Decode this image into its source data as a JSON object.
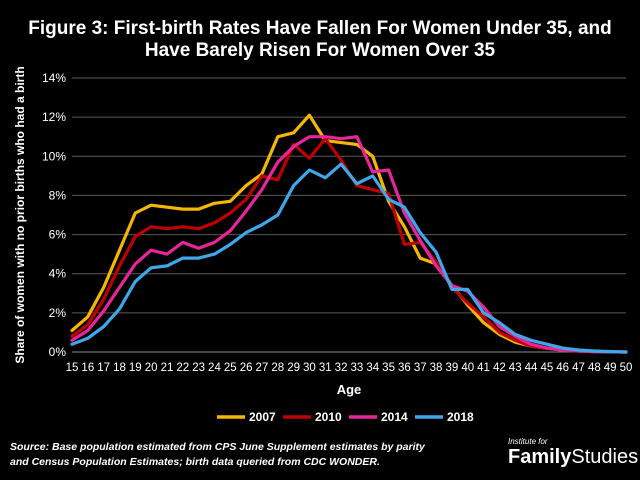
{
  "title_line1": "Figure 3: First-birth Rates Have Fallen For Women Under 35, and",
  "title_line2": "Have Barely Risen For Women Over 35",
  "source_line1": "Source: Base population estimated from CPS June Supplement estimates by parity",
  "source_line2": "and Census Population Estimates;  birth data queried from CDC WONDER.",
  "logo": {
    "small": "Institute for",
    "bold": "Family",
    "light": "Studies"
  },
  "chart_data": {
    "type": "line",
    "xlabel": "Age",
    "ylabel": "Share of women with no prior births who had a birth",
    "ylim": [
      0,
      14
    ],
    "yticks": [
      "0%",
      "2%",
      "4%",
      "6%",
      "8%",
      "10%",
      "12%",
      "14%"
    ],
    "grid": true,
    "legend_position": "bottom",
    "x": [
      15,
      16,
      17,
      18,
      19,
      20,
      21,
      22,
      23,
      24,
      25,
      26,
      27,
      28,
      29,
      30,
      31,
      32,
      33,
      34,
      35,
      36,
      37,
      38,
      39,
      40,
      41,
      42,
      43,
      44,
      45,
      46,
      47,
      48,
      49,
      50
    ],
    "series": [
      {
        "name": "2007",
        "color": "#f5b800",
        "values": [
          1.1,
          1.8,
          3.3,
          5.2,
          7.1,
          7.5,
          7.4,
          7.3,
          7.3,
          7.6,
          7.7,
          8.5,
          9.1,
          11.0,
          11.2,
          12.1,
          10.8,
          10.7,
          10.6,
          10.0,
          7.7,
          6.4,
          4.8,
          4.5,
          3.4,
          2.4,
          1.5,
          0.9,
          0.5,
          0.3,
          0.2,
          0.1,
          0.05,
          0.02,
          0.01,
          0.0
        ]
      },
      {
        "name": "2010",
        "color": "#c00000",
        "values": [
          0.8,
          1.4,
          2.7,
          4.4,
          5.9,
          6.4,
          6.3,
          6.4,
          6.3,
          6.6,
          7.1,
          7.8,
          9.0,
          8.8,
          10.6,
          9.9,
          10.9,
          9.8,
          8.5,
          8.3,
          8.1,
          5.5,
          5.6,
          4.6,
          3.3,
          2.5,
          1.8,
          1.0,
          0.6,
          0.3,
          0.2,
          0.1,
          0.05,
          0.02,
          0.01,
          0.0
        ]
      },
      {
        "name": "2014",
        "color": "#e8259b",
        "values": [
          0.6,
          1.1,
          2.1,
          3.3,
          4.5,
          5.2,
          5.0,
          5.6,
          5.3,
          5.6,
          6.2,
          7.2,
          8.3,
          9.7,
          10.5,
          11.0,
          11.0,
          10.9,
          11.0,
          9.2,
          9.3,
          7.1,
          5.7,
          4.4,
          3.4,
          3.1,
          2.3,
          1.3,
          0.8,
          0.4,
          0.2,
          0.1,
          0.05,
          0.02,
          0.01,
          0.0
        ]
      },
      {
        "name": "2018",
        "color": "#3ea8ea",
        "values": [
          0.4,
          0.7,
          1.3,
          2.2,
          3.6,
          4.3,
          4.4,
          4.8,
          4.8,
          5.0,
          5.5,
          6.1,
          6.5,
          7.0,
          8.5,
          9.3,
          8.9,
          9.6,
          8.6,
          9.0,
          7.8,
          7.4,
          6.1,
          5.1,
          3.2,
          3.2,
          2.0,
          1.5,
          0.9,
          0.6,
          0.4,
          0.2,
          0.1,
          0.05,
          0.02,
          0.0
        ]
      }
    ]
  }
}
